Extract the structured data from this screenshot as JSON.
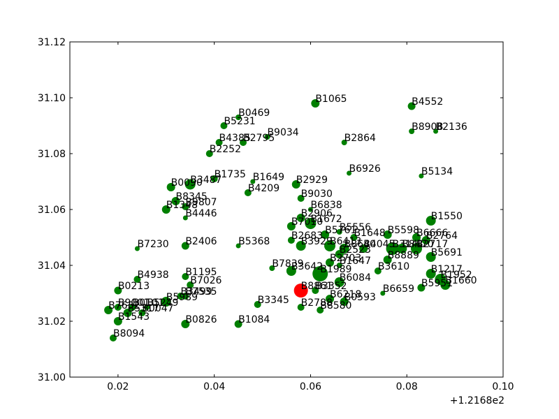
{
  "chart_data": {
    "type": "scatter",
    "title": "",
    "xlabel": "",
    "ylabel": "",
    "x_offset_text": "+1.2168e2",
    "xlim": [
      0.01,
      0.1
    ],
    "ylim": [
      31.0,
      31.12
    ],
    "x_ticks": [
      0.02,
      0.04,
      0.06,
      0.08,
      0.1
    ],
    "x_tick_labels": [
      "0.02",
      "0.04",
      "0.06",
      "0.08",
      "0.10"
    ],
    "y_ticks": [
      31.0,
      31.02,
      31.04,
      31.06,
      31.08,
      31.1,
      31.12
    ],
    "y_tick_labels": [
      "31.00",
      "31.02",
      "31.04",
      "31.06",
      "31.08",
      "31.10",
      "31.12"
    ],
    "grid": false,
    "point_color": "#007f00",
    "highlight_color": "#ff0000",
    "points": [
      {
        "label": "B1065",
        "x": 0.061,
        "y": 31.098,
        "s": 6
      },
      {
        "label": "B4552",
        "x": 0.081,
        "y": 31.097,
        "s": 5.5
      },
      {
        "label": "B0469",
        "x": 0.045,
        "y": 31.093,
        "s": 4
      },
      {
        "label": "B5231",
        "x": 0.042,
        "y": 31.09,
        "s": 5
      },
      {
        "label": "B8908",
        "x": 0.081,
        "y": 31.088,
        "s": 4
      },
      {
        "label": "B2136",
        "x": 0.086,
        "y": 31.088,
        "s": 3.5
      },
      {
        "label": "B9034",
        "x": 0.051,
        "y": 31.086,
        "s": 4
      },
      {
        "label": "B4385",
        "x": 0.041,
        "y": 31.084,
        "s": 5
      },
      {
        "label": "B2795",
        "x": 0.046,
        "y": 31.084,
        "s": 5
      },
      {
        "label": "B2864",
        "x": 0.067,
        "y": 31.084,
        "s": 4
      },
      {
        "label": "B2252",
        "x": 0.039,
        "y": 31.08,
        "s": 5
      },
      {
        "label": "B6926",
        "x": 0.068,
        "y": 31.073,
        "s": 3.5
      },
      {
        "label": "B5134",
        "x": 0.083,
        "y": 31.072,
        "s": 3.5
      },
      {
        "label": "B1735",
        "x": 0.04,
        "y": 31.071,
        "s": 5
      },
      {
        "label": "B1649",
        "x": 0.048,
        "y": 31.07,
        "s": 3.5
      },
      {
        "label": "B2929",
        "x": 0.057,
        "y": 31.069,
        "s": 6
      },
      {
        "label": "B0090",
        "x": 0.031,
        "y": 31.068,
        "s": 6
      },
      {
        "label": "B3487",
        "x": 0.035,
        "y": 31.069,
        "s": 7.5
      },
      {
        "label": "B4209",
        "x": 0.047,
        "y": 31.066,
        "s": 5
      },
      {
        "label": "B9030",
        "x": 0.058,
        "y": 31.064,
        "s": 5
      },
      {
        "label": "B8345",
        "x": 0.032,
        "y": 31.063,
        "s": 6
      },
      {
        "label": "B9807",
        "x": 0.034,
        "y": 31.061,
        "s": 5
      },
      {
        "label": "B1348",
        "x": 0.03,
        "y": 31.06,
        "s": 6
      },
      {
        "label": "B6838",
        "x": 0.06,
        "y": 31.06,
        "s": 3.5
      },
      {
        "label": "B4446",
        "x": 0.034,
        "y": 31.057,
        "s": 3.5
      },
      {
        "label": "B2906",
        "x": 0.058,
        "y": 31.057,
        "s": 6
      },
      {
        "label": "B1550",
        "x": 0.085,
        "y": 31.056,
        "s": 7
      },
      {
        "label": "B7010",
        "x": 0.056,
        "y": 31.054,
        "s": 6
      },
      {
        "label": "B1672",
        "x": 0.06,
        "y": 31.055,
        "s": 8
      },
      {
        "label": "B5761",
        "x": 0.063,
        "y": 31.051,
        "s": 6
      },
      {
        "label": "B5556",
        "x": 0.066,
        "y": 31.052,
        "s": 4
      },
      {
        "label": "B5598",
        "x": 0.076,
        "y": 31.051,
        "s": 6
      },
      {
        "label": "B6666",
        "x": 0.082,
        "y": 31.05,
        "s": 6
      },
      {
        "label": "B1648",
        "x": 0.069,
        "y": 31.05,
        "s": 5
      },
      {
        "label": "B2683",
        "x": 0.056,
        "y": 31.049,
        "s": 5
      },
      {
        "label": "B2764",
        "x": 0.084,
        "y": 31.049,
        "s": 6
      },
      {
        "label": "B7230",
        "x": 0.024,
        "y": 31.046,
        "s": 3.5
      },
      {
        "label": "B2406",
        "x": 0.034,
        "y": 31.047,
        "s": 5.5
      },
      {
        "label": "B5368",
        "x": 0.045,
        "y": 31.047,
        "s": 3.5
      },
      {
        "label": "B3929",
        "x": 0.058,
        "y": 31.047,
        "s": 7
      },
      {
        "label": "B6413",
        "x": 0.064,
        "y": 31.047,
        "s": 8
      },
      {
        "label": "B8640",
        "x": 0.067,
        "y": 31.046,
        "s": 7
      },
      {
        "label": "B4045",
        "x": 0.071,
        "y": 31.046,
        "s": 6
      },
      {
        "label": "B3141",
        "x": 0.077,
        "y": 31.046,
        "s": 9
      },
      {
        "label": "B8470",
        "x": 0.079,
        "y": 31.046,
        "s": 7
      },
      {
        "label": "B2717",
        "x": 0.082,
        "y": 31.046,
        "s": 8
      },
      {
        "label": "B2523",
        "x": 0.066,
        "y": 31.044,
        "s": 6
      },
      {
        "label": "B5691",
        "x": 0.085,
        "y": 31.043,
        "s": 7
      },
      {
        "label": "B8889",
        "x": 0.076,
        "y": 31.042,
        "s": 6
      },
      {
        "label": "B2703",
        "x": 0.064,
        "y": 31.041,
        "s": 6
      },
      {
        "label": "B1647",
        "x": 0.066,
        "y": 31.04,
        "s": 4
      },
      {
        "label": "B7839",
        "x": 0.052,
        "y": 31.039,
        "s": 4
      },
      {
        "label": "B3610",
        "x": 0.074,
        "y": 31.038,
        "s": 5
      },
      {
        "label": "B3642",
        "x": 0.056,
        "y": 31.038,
        "s": 7
      },
      {
        "label": "B1989",
        "x": 0.062,
        "y": 31.037,
        "s": 11
      },
      {
        "label": "B1217",
        "x": 0.085,
        "y": 31.037,
        "s": 7
      },
      {
        "label": "B1195",
        "x": 0.034,
        "y": 31.036,
        "s": 5
      },
      {
        "label": "B6084",
        "x": 0.066,
        "y": 31.034,
        "s": 7
      },
      {
        "label": "B1952",
        "x": 0.087,
        "y": 31.035,
        "s": 8
      },
      {
        "label": "B4938",
        "x": 0.024,
        "y": 31.035,
        "s": 5
      },
      {
        "label": "B7026",
        "x": 0.035,
        "y": 31.033,
        "s": 5
      },
      {
        "label": "B1660",
        "x": 0.088,
        "y": 31.033,
        "s": 7
      },
      {
        "label": "B0213",
        "x": 0.02,
        "y": 31.031,
        "s": 5.5
      },
      {
        "label": "B3352",
        "x": 0.061,
        "y": 31.031,
        "s": 5
      },
      {
        "label": "B5951",
        "x": 0.083,
        "y": 31.032,
        "s": 5.5
      },
      {
        "label": "B6659",
        "x": 0.075,
        "y": 31.03,
        "s": 3.5
      },
      {
        "label": "B3499",
        "x": 0.033,
        "y": 31.029,
        "s": 5
      },
      {
        "label": "B7535",
        "x": 0.034,
        "y": 31.029,
        "s": 5
      },
      {
        "label": "B8861",
        "x": 0.058,
        "y": 31.031,
        "s": 10,
        "highlight": true
      },
      {
        "label": "B6218",
        "x": 0.064,
        "y": 31.028,
        "s": 6
      },
      {
        "label": "B0593",
        "x": 0.067,
        "y": 31.027,
        "s": 6
      },
      {
        "label": "B5989",
        "x": 0.03,
        "y": 31.027,
        "s": 7
      },
      {
        "label": "B9001",
        "x": 0.02,
        "y": 31.025,
        "s": 5
      },
      {
        "label": "B0101",
        "x": 0.023,
        "y": 31.025,
        "s": 5
      },
      {
        "label": "B5249",
        "x": 0.026,
        "y": 31.025,
        "s": 4
      },
      {
        "label": "B3345",
        "x": 0.049,
        "y": 31.026,
        "s": 5
      },
      {
        "label": "B2788",
        "x": 0.058,
        "y": 31.025,
        "s": 5
      },
      {
        "label": "B8580",
        "x": 0.062,
        "y": 31.024,
        "s": 5
      },
      {
        "label": "B7632",
        "x": 0.018,
        "y": 31.024,
        "s": 6
      },
      {
        "label": "B5317",
        "x": 0.022,
        "y": 31.023,
        "s": 6
      },
      {
        "label": "B0047",
        "x": 0.025,
        "y": 31.023,
        "s": 5
      },
      {
        "label": "B1543",
        "x": 0.02,
        "y": 31.02,
        "s": 6
      },
      {
        "label": "B0826",
        "x": 0.034,
        "y": 31.019,
        "s": 6
      },
      {
        "label": "B1084",
        "x": 0.045,
        "y": 31.019,
        "s": 5.5
      },
      {
        "label": "B8094",
        "x": 0.019,
        "y": 31.014,
        "s": 5
      }
    ]
  }
}
